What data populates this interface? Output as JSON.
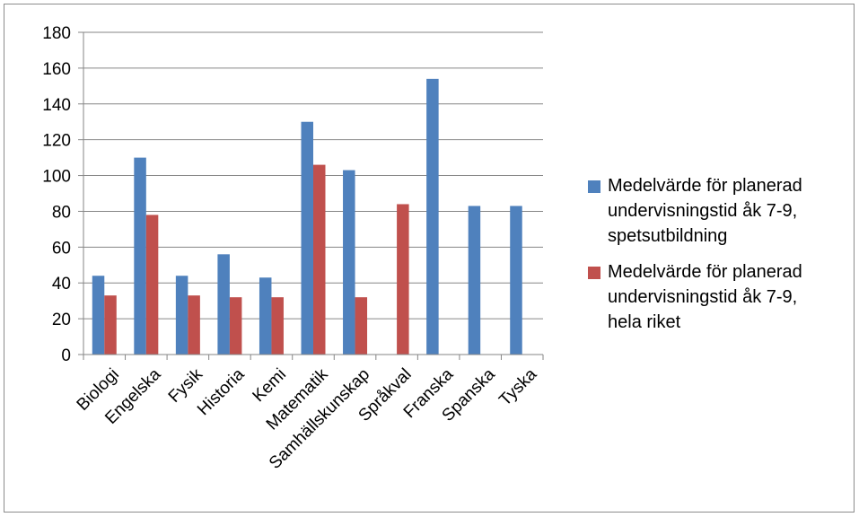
{
  "chart_data": {
    "type": "bar",
    "categories": [
      "Biologi",
      "Engelska",
      "Fysik",
      "Historia",
      "Kemi",
      "Matematik",
      "Samhällskunskap",
      "Språkval",
      "Franska",
      "Spanska",
      "Tyska"
    ],
    "series": [
      {
        "name": "Medelvärde för planerad\nundervisningstid åk 7-9,\nspetsutbildning",
        "color": "#4f81bd",
        "values": [
          44,
          110,
          44,
          56,
          43,
          130,
          103,
          null,
          154,
          83,
          83
        ]
      },
      {
        "name": "Medelvärde för planerad\nundervisningstid åk 7-9,\nhela riket",
        "color": "#c0504d",
        "values": [
          33,
          78,
          33,
          32,
          32,
          106,
          32,
          84,
          null,
          null,
          null
        ]
      }
    ],
    "yticks": [
      "0",
      "20",
      "40",
      "60",
      "80",
      "100",
      "120",
      "140",
      "160",
      "180"
    ],
    "ylim": [
      0,
      180
    ],
    "grid": true,
    "legend_position": "right"
  }
}
